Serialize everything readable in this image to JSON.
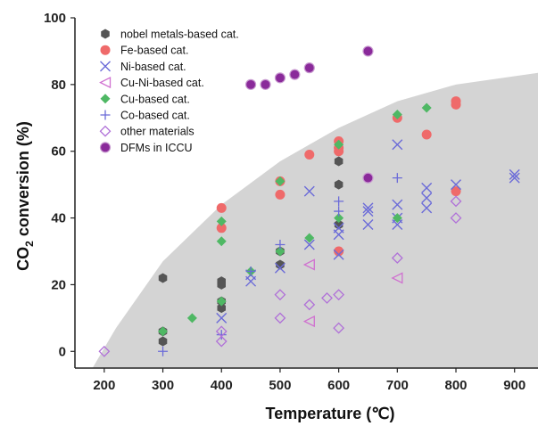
{
  "chart_data": {
    "type": "scatter",
    "xlabel": "Temperature (℃)",
    "ylabel_main": "CO",
    "ylabel_sub": "2",
    "ylabel_rest": " conversion (%)",
    "xlim": [
      150,
      940
    ],
    "ylim": [
      -5,
      100
    ],
    "x_ticks": [
      200,
      300,
      400,
      500,
      600,
      700,
      800,
      900
    ],
    "y_ticks": [
      0,
      20,
      40,
      60,
      80,
      100
    ],
    "shaded_region": {
      "color": "#d4d4d4",
      "boundary": [
        [
          180,
          -5
        ],
        [
          220,
          7
        ],
        [
          300,
          27
        ],
        [
          400,
          44
        ],
        [
          500,
          57
        ],
        [
          600,
          67
        ],
        [
          700,
          75
        ],
        [
          800,
          80
        ],
        [
          940,
          83.5
        ]
      ]
    },
    "legend_position": "top-left",
    "series": [
      {
        "name": "nobel metals-based cat.",
        "marker": "hexagon",
        "color": "#555555",
        "points": [
          [
            300,
            22
          ],
          [
            300,
            6
          ],
          [
            300,
            3
          ],
          [
            400,
            21
          ],
          [
            400,
            20
          ],
          [
            400,
            15
          ],
          [
            400,
            13
          ],
          [
            500,
            30
          ],
          [
            500,
            26
          ],
          [
            600,
            57
          ],
          [
            600,
            50
          ],
          [
            600,
            38
          ]
        ]
      },
      {
        "name": "Fe-based cat.",
        "marker": "circle",
        "color": "#ef6a6a",
        "points": [
          [
            400,
            43
          ],
          [
            400,
            37
          ],
          [
            500,
            51
          ],
          [
            500,
            47
          ],
          [
            550,
            59
          ],
          [
            600,
            63
          ],
          [
            600,
            61
          ],
          [
            600,
            60
          ],
          [
            600,
            30
          ],
          [
            650,
            52
          ],
          [
            700,
            70
          ],
          [
            750,
            65
          ],
          [
            800,
            75
          ],
          [
            800,
            74
          ],
          [
            800,
            48
          ]
        ]
      },
      {
        "name": "Ni-based cat.",
        "marker": "x",
        "color": "#6b6bd8",
        "points": [
          [
            400,
            10
          ],
          [
            450,
            23
          ],
          [
            450,
            21
          ],
          [
            500,
            25
          ],
          [
            550,
            48
          ],
          [
            550,
            32
          ],
          [
            600,
            35
          ],
          [
            600,
            37
          ],
          [
            600,
            29
          ],
          [
            650,
            43
          ],
          [
            650,
            42
          ],
          [
            650,
            38
          ],
          [
            700,
            62
          ],
          [
            700,
            44
          ],
          [
            700,
            40
          ],
          [
            700,
            38
          ],
          [
            750,
            49
          ],
          [
            750,
            46
          ],
          [
            750,
            43
          ],
          [
            800,
            50
          ],
          [
            900,
            53
          ],
          [
            900,
            52
          ]
        ]
      },
      {
        "name": "Cu-Ni-based cat.",
        "marker": "triangle-left",
        "color": "#d070d0",
        "points": [
          [
            550,
            26
          ],
          [
            550,
            9
          ],
          [
            700,
            22
          ]
        ]
      },
      {
        "name": "Cu-based cat.",
        "marker": "diamond",
        "color": "#4fb864",
        "points": [
          [
            300,
            6
          ],
          [
            350,
            10
          ],
          [
            400,
            39
          ],
          [
            400,
            33
          ],
          [
            400,
            15
          ],
          [
            450,
            24
          ],
          [
            500,
            51
          ],
          [
            500,
            30
          ],
          [
            550,
            34
          ],
          [
            600,
            62
          ],
          [
            600,
            40
          ],
          [
            700,
            71
          ],
          [
            700,
            40
          ],
          [
            750,
            73
          ]
        ]
      },
      {
        "name": "Co-based cat.",
        "marker": "plus",
        "color": "#6b6bd8",
        "points": [
          [
            300,
            0
          ],
          [
            400,
            5
          ],
          [
            450,
            24
          ],
          [
            500,
            32
          ],
          [
            600,
            45
          ],
          [
            600,
            42
          ],
          [
            700,
            52
          ]
        ]
      },
      {
        "name": "other materials",
        "marker": "diamond-open",
        "color": "#b070d8",
        "points": [
          [
            200,
            0
          ],
          [
            400,
            6
          ],
          [
            400,
            3
          ],
          [
            500,
            17
          ],
          [
            500,
            10
          ],
          [
            550,
            14
          ],
          [
            580,
            16
          ],
          [
            600,
            17
          ],
          [
            600,
            7
          ],
          [
            700,
            28
          ],
          [
            800,
            45
          ],
          [
            800,
            40
          ]
        ]
      },
      {
        "name": "DFMs in ICCU",
        "marker": "circle-purple",
        "color": "#8a2a9a",
        "points": [
          [
            450,
            80
          ],
          [
            475,
            80
          ],
          [
            500,
            82
          ],
          [
            525,
            83
          ],
          [
            550,
            85
          ],
          [
            650,
            90
          ],
          [
            650,
            52
          ]
        ]
      }
    ]
  }
}
